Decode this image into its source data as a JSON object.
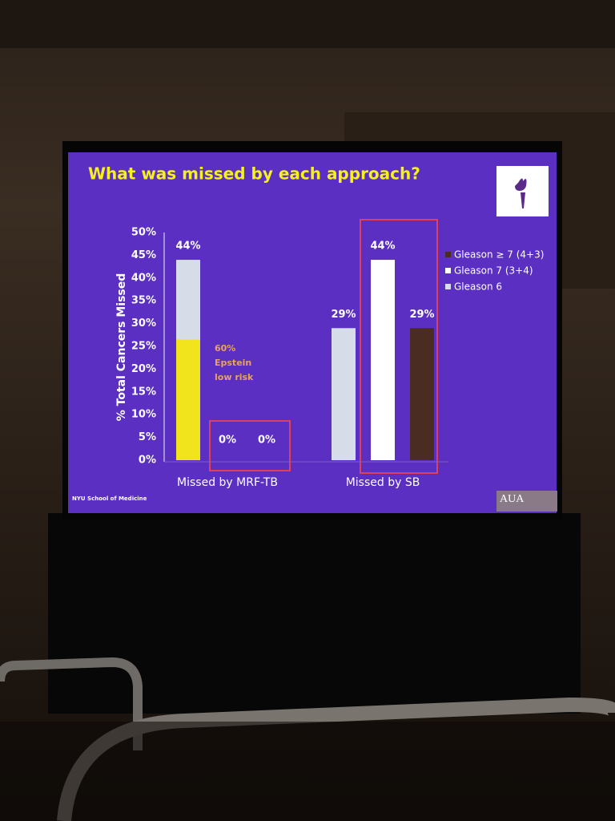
{
  "chart_data": {
    "type": "bar",
    "title": "What was missed by each approach?",
    "y_label": "% Total Cancers Missed",
    "categories": [
      "Missed by MRF-TB",
      "Missed by SB"
    ],
    "series": [
      {
        "name": "Gleason 6",
        "color": "#d6dce8",
        "values": [
          44,
          29
        ],
        "value_labels": [
          "44%",
          "29%"
        ]
      },
      {
        "name": "Gleason 7 (3+4)",
        "color": "#ffffff",
        "values": [
          0,
          44
        ],
        "value_labels": [
          "0%",
          "44%"
        ]
      },
      {
        "name": "Gleason ≥ 7 (4+3)",
        "color": "#4a2c22",
        "values": [
          0,
          29
        ],
        "value_labels": [
          "0%",
          "29%"
        ]
      }
    ],
    "highlight": {
      "lines": [
        "60%",
        "Epstein",
        "low risk"
      ],
      "value": 26.5,
      "color": "#f2e41c",
      "text_color": "#e9a25a"
    },
    "ylim": [
      0,
      50
    ],
    "yticks": [
      {
        "value": 0,
        "label": "0%"
      },
      {
        "value": 5,
        "label": "5%"
      },
      {
        "value": 10,
        "label": "10%"
      },
      {
        "value": 15,
        "label": "15%"
      },
      {
        "value": 20,
        "label": "20%"
      },
      {
        "value": 25,
        "label": "25%"
      },
      {
        "value": 30,
        "label": "30%"
      },
      {
        "value": 35,
        "label": "35%"
      },
      {
        "value": 40,
        "label": "40%"
      },
      {
        "value": 45,
        "label": "45%"
      },
      {
        "value": 50,
        "label": "50%"
      }
    ],
    "grid": false,
    "legend": "upper right",
    "footer_left": "NYU School of Medicine",
    "footer_right": "AUA"
  }
}
